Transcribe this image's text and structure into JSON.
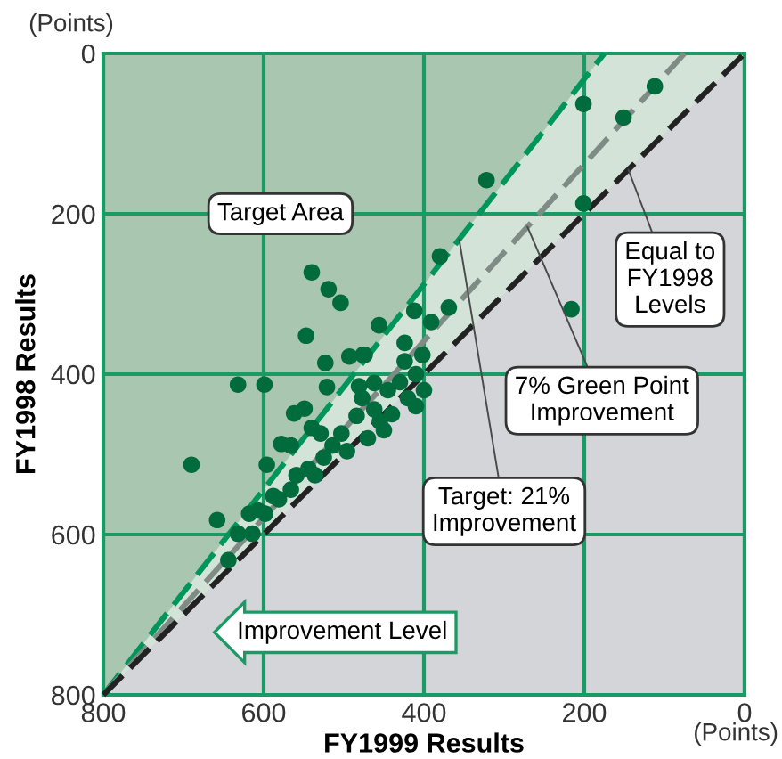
{
  "chart_data": {
    "type": "scatter",
    "xlabel": "FY1999 Results",
    "ylabel": "FY1998 Results",
    "xlim": [
      800,
      0
    ],
    "ylim": [
      800,
      0
    ],
    "xticks": [
      800,
      600,
      400,
      200,
      0
    ],
    "yticks": [
      0,
      200,
      400,
      600,
      800
    ],
    "grid": true,
    "series": [
      {
        "type": "line",
        "color": "#00955a",
        "line_style": "dashed",
        "x": [
          800,
          175
        ],
        "values": [
          800,
          0
        ]
      },
      {
        "type": "line",
        "color": "#7f8c86",
        "line_style": "dashed",
        "x": [
          800,
          75
        ],
        "values": [
          800,
          0
        ]
      },
      {
        "type": "line",
        "color": "#222222",
        "line_style": "dashed",
        "x": [
          800,
          0
        ],
        "values": [
          800,
          0
        ]
      },
      {
        "color": "#006b3c",
        "marker": "circle",
        "x": [
          201,
          151,
          112,
          322,
          201,
          216,
          380,
          412,
          369,
          391,
          456,
          476,
          424,
          424,
          402,
          410,
          540,
          519,
          504,
          547,
          523,
          493,
          474,
          632,
          599,
          690,
          658,
          644,
          632,
          614,
          596,
          578,
          562,
          549,
          521,
          618,
          607,
          598,
          581,
          566,
          559,
          544,
          536,
          525,
          514,
          503,
          496,
          529,
          540,
          484,
          477,
          462,
          455,
          481,
          462,
          566,
          588,
          400,
          420,
          440,
          430,
          410,
          450,
          470,
          445
        ],
        "values": [
          63,
          80,
          41,
          158,
          187,
          319,
          253,
          321,
          317,
          335,
          339,
          376,
          361,
          384,
          376,
          400,
          273,
          294,
          311,
          352,
          386,
          378,
          376,
          413,
          413,
          513,
          582,
          632,
          599,
          599,
          513,
          487,
          449,
          443,
          416,
          574,
          570,
          574,
          556,
          544,
          526,
          518,
          526,
          504,
          489,
          474,
          496,
          474,
          467,
          452,
          430,
          444,
          459,
          415,
          411,
          489,
          552,
          420,
          430,
          450,
          410,
          440,
          470,
          480,
          420
        ]
      }
    ],
    "annotations": [
      "Target Area",
      {
        "text": "Target: 21%\nImprovement",
        "x": 356,
        "y": 232
      },
      {
        "text": "7% Green Point\nImprovement",
        "x": 271,
        "y": 216
      },
      {
        "text": "Equal to\nFY1998\nLevels",
        "x": 145,
        "y": 145
      },
      "Improvement Level",
      "(Points)",
      "(Points)"
    ]
  }
}
